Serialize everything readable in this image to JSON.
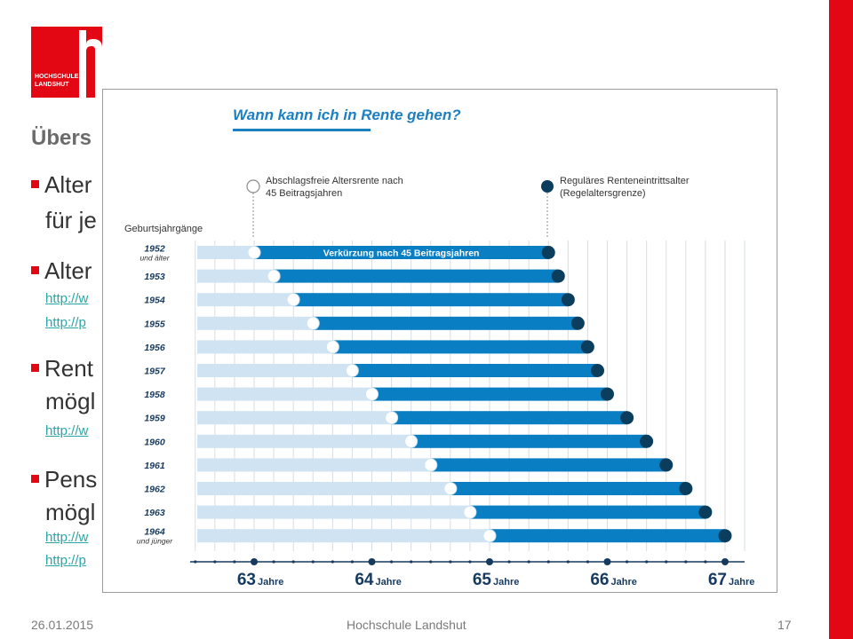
{
  "slide": {
    "title": "Übers",
    "bullets": [
      {
        "line1": "Alter",
        "line2": "für je"
      },
      {
        "line1": "Alter",
        "links": [
          "http://w",
          "http://p"
        ]
      },
      {
        "line1": "Rent",
        "line2": "mögl",
        "links": [
          "http://w"
        ]
      },
      {
        "line1": "Pens",
        "line2": "mögl",
        "links": [
          "http://w",
          "http://p"
        ]
      }
    ],
    "footer": {
      "date": "26.01.2015",
      "center": "Hochschule Landshut",
      "page": "17"
    }
  },
  "logo": {
    "line1": "HOCHSCHULE",
    "line2": "LANDSHUT"
  },
  "colors": {
    "accent_red": "#e30613",
    "bar_blue": "#0a7ec2",
    "bar_light": "#cfe3f3",
    "title_blue": "#1b7fc1",
    "marker_dark": "#0b3d5c"
  },
  "chart_data": {
    "type": "bar",
    "title": "Wann kann ich in Rente gehen?",
    "legend": [
      {
        "label_line1": "Abschlagsfreie Altersrente nach",
        "label_line2": "45 Beitragsjahren",
        "marker": "open-circle"
      },
      {
        "label_line1": "Reguläres Renteneintrittsalter",
        "label_line2": "(Regelaltersgrenze)",
        "marker": "filled-circle"
      }
    ],
    "category_axis_title": "Geburtsjahrgänge",
    "bar_annotation": "Verkürzung nach 45 Beitragsjahren",
    "categories": [
      {
        "label": "1952",
        "sub": "und älter"
      },
      {
        "label": "1953"
      },
      {
        "label": "1954"
      },
      {
        "label": "1955"
      },
      {
        "label": "1956"
      },
      {
        "label": "1957"
      },
      {
        "label": "1958"
      },
      {
        "label": "1959"
      },
      {
        "label": "1960"
      },
      {
        "label": "1961"
      },
      {
        "label": "1962"
      },
      {
        "label": "1963"
      },
      {
        "label": "1964",
        "sub": "und jünger"
      }
    ],
    "series": [
      {
        "name": "Abschlagsfreie Altersrente nach 45 Beitragsjahren",
        "values": [
          63.0,
          63.167,
          63.333,
          63.5,
          63.667,
          63.833,
          64.0,
          64.167,
          64.333,
          64.5,
          64.667,
          64.833,
          65.0
        ]
      },
      {
        "name": "Reguläres Renteneintrittsalter (Regelaltersgrenze)",
        "values": [
          65.5,
          65.583,
          65.667,
          65.75,
          65.833,
          65.917,
          66.0,
          66.167,
          66.333,
          66.5,
          66.667,
          66.833,
          67.0
        ]
      }
    ],
    "x_ticks": [
      {
        "value": 63,
        "num": "63",
        "unit": "Jahre"
      },
      {
        "value": 64,
        "num": "64",
        "unit": "Jahre"
      },
      {
        "value": 65,
        "num": "65",
        "unit": "Jahre"
      },
      {
        "value": 66,
        "num": "66",
        "unit": "Jahre"
      },
      {
        "value": 67,
        "num": "67",
        "unit": "Jahre"
      }
    ],
    "xlim": [
      62.5,
      67.15
    ]
  }
}
